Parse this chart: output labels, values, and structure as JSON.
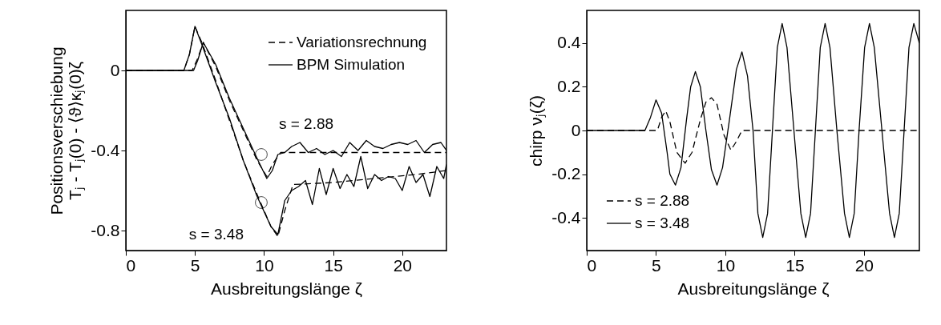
{
  "chart_data": [
    {
      "type": "line",
      "xlabel": "Ausbreitungslänge ζ",
      "ylabel": "Positionsverschiebung\nTⱼ - Tⱼ(0) - ⟨ϑ⟩κⱼ(0)ζ",
      "xlim": [
        0,
        23.2
      ],
      "ylim": [
        -0.9,
        0.3
      ],
      "xticks": [
        0,
        5,
        10,
        15,
        20
      ],
      "yticks": [
        -0.8,
        -0.4,
        0
      ],
      "grid": false,
      "legend": "top right",
      "series": [
        {
          "name": "Variationsrechnung",
          "color": "#000000",
          "line_style": "dashed",
          "x": [
            0,
            4.8,
            5.2,
            5.6,
            6.5,
            7.5,
            8.5,
            9.5,
            10.2,
            10.6,
            11.2,
            23.2
          ],
          "values": [
            0,
            0,
            0.06,
            0.14,
            0.02,
            -0.15,
            -0.3,
            -0.45,
            -0.53,
            -0.47,
            -0.41,
            -0.41
          ]
        },
        {
          "color": "#000000",
          "line_style": "dashed",
          "x": [
            0,
            4.2,
            4.6,
            5.0,
            5.5,
            6.5,
            7.5,
            8.5,
            9.5,
            10.5,
            11.0,
            11.5,
            12.1,
            15,
            18,
            21,
            23.2
          ],
          "values": [
            0,
            0,
            0.08,
            0.22,
            0.14,
            -0.05,
            -0.25,
            -0.45,
            -0.62,
            -0.78,
            -0.83,
            -0.7,
            -0.57,
            -0.56,
            -0.54,
            -0.52,
            -0.5
          ]
        },
        {
          "name": "BPM Simulation",
          "color": "#000000",
          "line_style": "solid",
          "x": [
            0,
            4.9,
            5.2,
            5.6,
            6.5,
            7.5,
            8.5,
            9.5,
            10.2,
            10.6,
            11,
            11.5,
            12,
            12.6,
            13.2,
            13.8,
            14.4,
            15,
            15.6,
            16.2,
            16.8,
            17.4,
            18,
            18.6,
            19.2,
            19.8,
            20.4,
            21,
            21.6,
            22.2,
            22.8,
            23.2
          ],
          "values": [
            0,
            0,
            0.05,
            0.14,
            0.03,
            -0.14,
            -0.29,
            -0.44,
            -0.54,
            -0.5,
            -0.42,
            -0.41,
            -0.38,
            -0.36,
            -0.41,
            -0.39,
            -0.42,
            -0.4,
            -0.43,
            -0.36,
            -0.4,
            -0.35,
            -0.38,
            -0.39,
            -0.37,
            -0.36,
            -0.37,
            -0.35,
            -0.41,
            -0.37,
            -0.36,
            -0.4
          ]
        },
        {
          "color": "#000000",
          "line_style": "solid",
          "x": [
            0,
            4.2,
            4.6,
            5.0,
            5.5,
            6.5,
            7.5,
            8.5,
            9.5,
            10.5,
            11.0,
            11.5,
            12,
            12.5,
            13,
            13.5,
            14,
            14.5,
            15,
            15.5,
            16,
            16.5,
            17,
            17.5,
            18,
            18.5,
            19,
            19.5,
            20,
            20.5,
            21,
            21.5,
            22,
            22.5,
            23,
            23.2
          ],
          "values": [
            0,
            0,
            0.08,
            0.22,
            0.13,
            -0.06,
            -0.24,
            -0.45,
            -0.63,
            -0.78,
            -0.82,
            -0.65,
            -0.6,
            -0.58,
            -0.55,
            -0.67,
            -0.49,
            -0.62,
            -0.49,
            -0.59,
            -0.52,
            -0.58,
            -0.43,
            -0.59,
            -0.52,
            -0.55,
            -0.53,
            -0.54,
            -0.6,
            -0.48,
            -0.56,
            -0.52,
            -0.63,
            -0.48,
            -0.54,
            -0.47
          ]
        }
      ],
      "annotations": [
        {
          "text": "s = 2.88",
          "x": 9.8,
          "y": -0.42
        },
        {
          "text": "s = 3.48",
          "x": 9.8,
          "y": -0.66
        }
      ]
    },
    {
      "type": "line",
      "xlabel": "Ausbreitungslänge ζ",
      "ylabel": "chirp  νⱼ(ζ)",
      "xlim": [
        0,
        24
      ],
      "ylim": [
        -0.55,
        0.55
      ],
      "xticks": [
        0,
        5,
        10,
        15,
        20
      ],
      "yticks": [
        -0.4,
        -0.2,
        0,
        0.2,
        0.4
      ],
      "grid": false,
      "legend": "bottom left",
      "series": [
        {
          "name": "s = 2.88",
          "color": "#000000",
          "line_style": "dashed",
          "x": [
            0,
            5.1,
            5.4,
            5.7,
            6.0,
            6.5,
            7.1,
            7.6,
            8.2,
            8.6,
            9.0,
            9.4,
            9.9,
            10.4,
            10.8,
            11.2,
            24
          ],
          "values": [
            0,
            0,
            0.06,
            0.09,
            0.04,
            -0.1,
            -0.15,
            -0.1,
            0.05,
            0.13,
            0.15,
            0.12,
            -0.02,
            -0.09,
            -0.05,
            0,
            0
          ]
        },
        {
          "name": "s = 3.48",
          "color": "#000000",
          "line_style": "solid",
          "x": [
            0,
            4.2,
            4.6,
            5.0,
            5.4,
            5.8,
            6.0,
            6.4,
            6.8,
            7.2,
            7.5,
            7.84,
            8.2,
            8.6,
            9.0,
            9.4,
            9.8,
            10.3,
            10.8,
            11.2,
            11.6,
            12.0,
            12.35,
            12.7,
            13.05,
            13.4,
            13.75,
            14.1,
            14.45,
            14.95,
            15.45,
            15.8,
            16.15,
            16.5,
            16.85,
            17.2,
            17.55,
            18.05,
            18.6,
            18.95,
            19.3,
            19.65,
            20.05,
            20.4,
            20.75,
            21.3,
            21.85,
            22.2,
            22.55,
            22.9,
            23.25,
            23.6,
            24
          ],
          "values": [
            0,
            0,
            0.06,
            0.14,
            0.08,
            -0.1,
            -0.2,
            -0.25,
            -0.17,
            0.05,
            0.2,
            0.27,
            0.2,
            0.0,
            -0.18,
            -0.25,
            -0.17,
            0.05,
            0.28,
            0.36,
            0.25,
            0.0,
            -0.38,
            -0.49,
            -0.38,
            0.0,
            0.38,
            0.49,
            0.38,
            0.0,
            -0.38,
            -0.49,
            -0.38,
            0.0,
            0.38,
            0.49,
            0.38,
            0.0,
            -0.38,
            -0.49,
            -0.38,
            0.0,
            0.38,
            0.49,
            0.38,
            0.0,
            -0.38,
            -0.49,
            -0.38,
            0.0,
            0.38,
            0.49,
            0.4
          ]
        }
      ]
    }
  ]
}
